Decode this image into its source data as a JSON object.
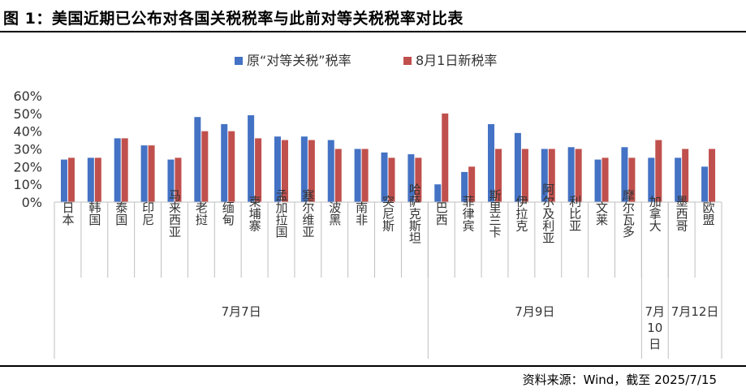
{
  "title": "图 1：美国近期已公布对各国关税税率与此前对等关税税率对比表",
  "source": "资料来源：Wind，截至 2025/7/15",
  "chart_data": {
    "type": "bar",
    "categories": [
      "日本",
      "韩国",
      "泰国",
      "印尼",
      "马来西亚",
      "老挝",
      "缅甸",
      "柬埔寨",
      "孟加拉国",
      "塞尔维亚",
      "波黑",
      "南非",
      "突尼斯",
      "哈萨克斯坦",
      "巴西",
      "菲律宾",
      "斯里兰卡",
      "伊拉克",
      "阿尔及利亚",
      "利比亚",
      "文莱",
      "摩尔瓦多",
      "加拿大",
      "墨西哥",
      "欧盟"
    ],
    "series": [
      {
        "name": "原“对等关税”税率",
        "color": "#4472c4",
        "values": [
          24,
          25,
          36,
          32,
          24,
          48,
          44,
          49,
          37,
          37,
          35,
          30,
          28,
          27,
          10,
          17,
          44,
          39,
          30,
          31,
          24,
          31,
          25,
          25,
          20
        ]
      },
      {
        "name": "8月1日新税率",
        "color": "#c0504d",
        "values": [
          25,
          25,
          36,
          32,
          25,
          40,
          40,
          36,
          35,
          35,
          30,
          30,
          25,
          25,
          50,
          20,
          30,
          30,
          30,
          30,
          25,
          25,
          35,
          30,
          30
        ]
      }
    ],
    "ylim": [
      0,
      60
    ],
    "yticks": [
      "0%",
      "10%",
      "20%",
      "30%",
      "40%",
      "50%",
      "60%"
    ],
    "groups": [
      {
        "label": "7月7日",
        "count": 14
      },
      {
        "label": "7月9日",
        "count": 8
      },
      {
        "label": "7月10日",
        "count": 1
      },
      {
        "label": "7月12日",
        "count": 2
      }
    ],
    "legend_position": "top",
    "grid": false
  }
}
